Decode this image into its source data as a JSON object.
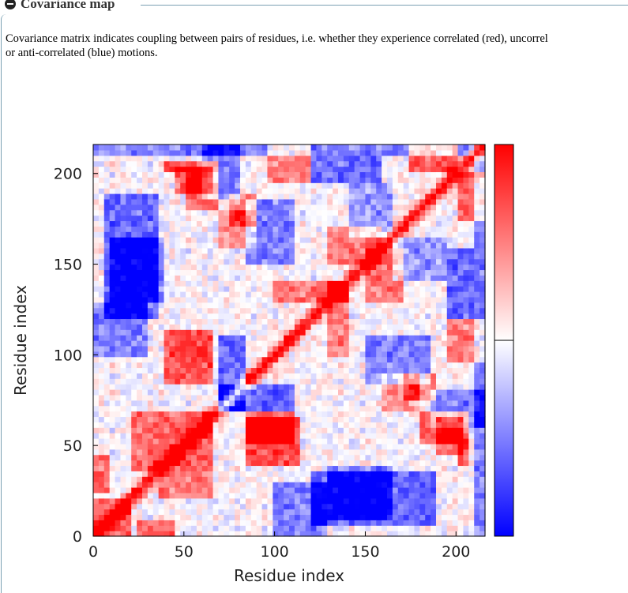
{
  "section": {
    "title": "Covariance map",
    "toggle_icon": "minus-circle-icon",
    "description_line1": "Covariance matrix indicates coupling between pairs of residues, i.e. whether they experience correlated (red), uncorrel",
    "description_line2": "or anti-correlated (blue) motions."
  },
  "chart_data": {
    "type": "heatmap",
    "title": "",
    "xlabel": "Residue index",
    "ylabel": "Residue index",
    "xlim": [
      0,
      216
    ],
    "ylim": [
      0,
      216
    ],
    "xticks": [
      0,
      50,
      100,
      150,
      200
    ],
    "yticks": [
      0,
      50,
      100,
      150,
      200
    ],
    "colorbar": {
      "min_color": "#0000ff",
      "mid_color": "#ffffff",
      "max_color": "#ff0000",
      "ticks_shown": false
    },
    "diagonal_value": 1.0,
    "blocks": [
      {
        "x": [
          0,
          20
        ],
        "y": [
          0,
          20
        ],
        "value": 0.6
      },
      {
        "x": [
          20,
          65
        ],
        "y": [
          35,
          70
        ],
        "value": 0.6
      },
      {
        "x": [
          35,
          65
        ],
        "y": [
          20,
          35
        ],
        "value": 0.5
      },
      {
        "x": [
          40,
          65
        ],
        "y": [
          85,
          115
        ],
        "value": 0.7
      },
      {
        "x": [
          85,
          115
        ],
        "y": [
          40,
          65
        ],
        "value": 0.7
      },
      {
        "x": [
          85,
          110
        ],
        "y": [
          50,
          70
        ],
        "value": 0.6
      },
      {
        "x": [
          0,
          10
        ],
        "y": [
          25,
          45
        ],
        "value": 0.6
      },
      {
        "x": [
          25,
          45
        ],
        "y": [
          0,
          10
        ],
        "value": 0.6
      },
      {
        "x": [
          45,
          65
        ],
        "y": [
          190,
          205
        ],
        "value": 0.6
      },
      {
        "x": [
          190,
          205
        ],
        "y": [
          45,
          65
        ],
        "value": 0.6
      },
      {
        "x": [
          130,
          160
        ],
        "y": [
          150,
          170
        ],
        "value": 0.5
      },
      {
        "x": [
          150,
          170
        ],
        "y": [
          130,
          160
        ],
        "value": 0.5
      },
      {
        "x": [
          175,
          200
        ],
        "y": [
          200,
          215
        ],
        "value": 0.6
      },
      {
        "x": [
          200,
          215
        ],
        "y": [
          175,
          200
        ],
        "value": 0.6
      },
      {
        "x": [
          70,
          90
        ],
        "y": [
          160,
          180
        ],
        "value": 0.4
      },
      {
        "x": [
          160,
          180
        ],
        "y": [
          70,
          90
        ],
        "value": 0.4
      },
      {
        "x": [
          180,
          200
        ],
        "y": [
          50,
          70
        ],
        "value": 0.6
      },
      {
        "x": [
          50,
          70
        ],
        "y": [
          180,
          200
        ],
        "value": 0.6
      },
      {
        "x": [
          170,
          190
        ],
        "y": [
          75,
          90
        ],
        "value": 0.5
      },
      {
        "x": [
          75,
          90
        ],
        "y": [
          170,
          190
        ],
        "value": 0.5
      },
      {
        "x": [
          95,
          120
        ],
        "y": [
          195,
          215
        ],
        "value": 0.5
      },
      {
        "x": [
          195,
          215
        ],
        "y": [
          95,
          120
        ],
        "value": 0.5
      },
      {
        "x": [
          200,
          208
        ],
        "y": [
          40,
          70
        ],
        "value": 0.7
      },
      {
        "x": [
          40,
          70
        ],
        "y": [
          200,
          208
        ],
        "value": 0.7
      },
      {
        "x": [
          130,
          140
        ],
        "y": [
          100,
          140
        ],
        "value": 0.5
      },
      {
        "x": [
          100,
          140
        ],
        "y": [
          130,
          140
        ],
        "value": 0.5
      },
      {
        "x": [
          70,
          85
        ],
        "y": [
          70,
          110
        ],
        "value": -0.6
      },
      {
        "x": [
          70,
          110
        ],
        "y": [
          70,
          85
        ],
        "value": -0.6
      },
      {
        "x": [
          5,
          35
        ],
        "y": [
          120,
          190
        ],
        "value": -0.6
      },
      {
        "x": [
          120,
          190
        ],
        "y": [
          5,
          35
        ],
        "value": -0.6
      },
      {
        "x": [
          130,
          165
        ],
        "y": [
          10,
          40
        ],
        "value": -0.5
      },
      {
        "x": [
          10,
          40
        ],
        "y": [
          130,
          165
        ],
        "value": -0.5
      },
      {
        "x": [
          150,
          185
        ],
        "y": [
          85,
          110
        ],
        "value": -0.5
      },
      {
        "x": [
          85,
          110
        ],
        "y": [
          150,
          185
        ],
        "value": -0.5
      },
      {
        "x": [
          195,
          210
        ],
        "y": [
          120,
          160
        ],
        "value": -0.6
      },
      {
        "x": [
          120,
          160
        ],
        "y": [
          195,
          210
        ],
        "value": -0.6
      },
      {
        "x": [
          100,
          130
        ],
        "y": [
          0,
          30
        ],
        "value": -0.5
      },
      {
        "x": [
          0,
          30
        ],
        "y": [
          100,
          130
        ],
        "value": -0.5
      },
      {
        "x": [
          60,
          80
        ],
        "y": [
          185,
          215
        ],
        "value": -0.5
      },
      {
        "x": [
          185,
          215
        ],
        "y": [
          60,
          80
        ],
        "value": -0.5
      },
      {
        "x": [
          165,
          195
        ],
        "y": [
          140,
          165
        ],
        "value": -0.4
      },
      {
        "x": [
          140,
          165
        ],
        "y": [
          165,
          195
        ],
        "value": -0.4
      },
      {
        "x": [
          210,
          216
        ],
        "y": [
          0,
          210
        ],
        "value": -0.5
      },
      {
        "x": [
          0,
          210
        ],
        "y": [
          210,
          216
        ],
        "value": -0.5
      }
    ]
  }
}
